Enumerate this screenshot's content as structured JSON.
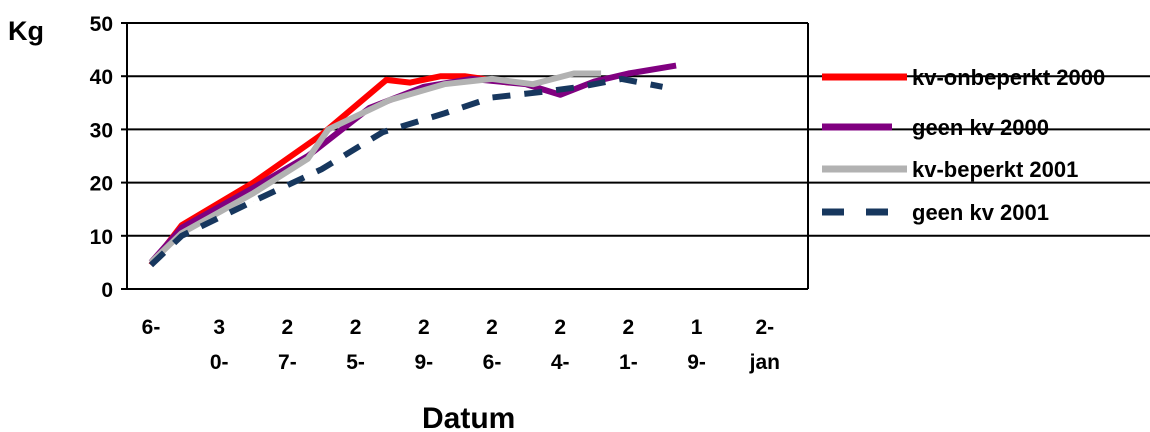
{
  "chart_data": {
    "type": "line",
    "xlabel": "Datum",
    "ylabel": "Kg",
    "ylim": [
      0,
      50
    ],
    "yticks": [
      "0",
      "10",
      "20",
      "30",
      "40",
      "50"
    ],
    "grid": "horizontal",
    "legend_position": "right",
    "categories": [
      [
        "6-"
      ],
      [
        "3",
        "0-"
      ],
      [
        "2",
        "7-"
      ],
      [
        "2",
        "5-"
      ],
      [
        "2",
        "9-"
      ],
      [
        "2",
        "6-"
      ],
      [
        "2",
        "4-"
      ],
      [
        "2",
        "1-"
      ],
      [
        "1",
        "9-"
      ],
      [
        "2-",
        "jan"
      ]
    ],
    "x_domain": [
      0,
      10
    ],
    "series": [
      {
        "name": "kv-onbeperkt 2000",
        "color": "#ff0000",
        "style": "solid",
        "points": [
          [
            0,
            4.5
          ],
          [
            0.45,
            12
          ],
          [
            1.5,
            20
          ],
          [
            2.5,
            29
          ],
          [
            3.45,
            39.3
          ],
          [
            3.8,
            38.8
          ],
          [
            4.25,
            40
          ],
          [
            4.6,
            40
          ],
          [
            5.25,
            38.8
          ]
        ]
      },
      {
        "name": "geen kv 2000",
        "color": "#800080",
        "style": "solid",
        "points": [
          [
            0,
            5
          ],
          [
            0.45,
            11.5
          ],
          [
            1.5,
            19
          ],
          [
            2.3,
            25
          ],
          [
            3.2,
            34
          ],
          [
            4.0,
            38
          ],
          [
            4.7,
            39.5
          ],
          [
            5.5,
            38.5
          ],
          [
            6.0,
            36.5
          ],
          [
            6.5,
            39
          ],
          [
            7.0,
            40.5
          ],
          [
            7.7,
            42
          ]
        ]
      },
      {
        "name": "kv-beperkt 2001",
        "color": "#b2b2b2",
        "style": "solid",
        "points": [
          [
            0,
            5
          ],
          [
            0.45,
            10.5
          ],
          [
            1.5,
            18
          ],
          [
            2.3,
            24.5
          ],
          [
            2.6,
            30
          ],
          [
            3.5,
            35.5
          ],
          [
            4.3,
            38.5
          ],
          [
            5.0,
            39.5
          ],
          [
            5.6,
            38.5
          ],
          [
            6.2,
            40.5
          ],
          [
            6.6,
            40.5
          ]
        ]
      },
      {
        "name": "geen kv 2001",
        "color": "#17375e",
        "style": "dashed",
        "points": [
          [
            0,
            4.5
          ],
          [
            0.45,
            10
          ],
          [
            1.5,
            16.5
          ],
          [
            2.5,
            22.5
          ],
          [
            3.4,
            29.5
          ],
          [
            4.3,
            33
          ],
          [
            5.0,
            36
          ],
          [
            5.7,
            37
          ],
          [
            6.3,
            38
          ],
          [
            6.9,
            39.5
          ],
          [
            7.5,
            38
          ]
        ]
      }
    ]
  }
}
